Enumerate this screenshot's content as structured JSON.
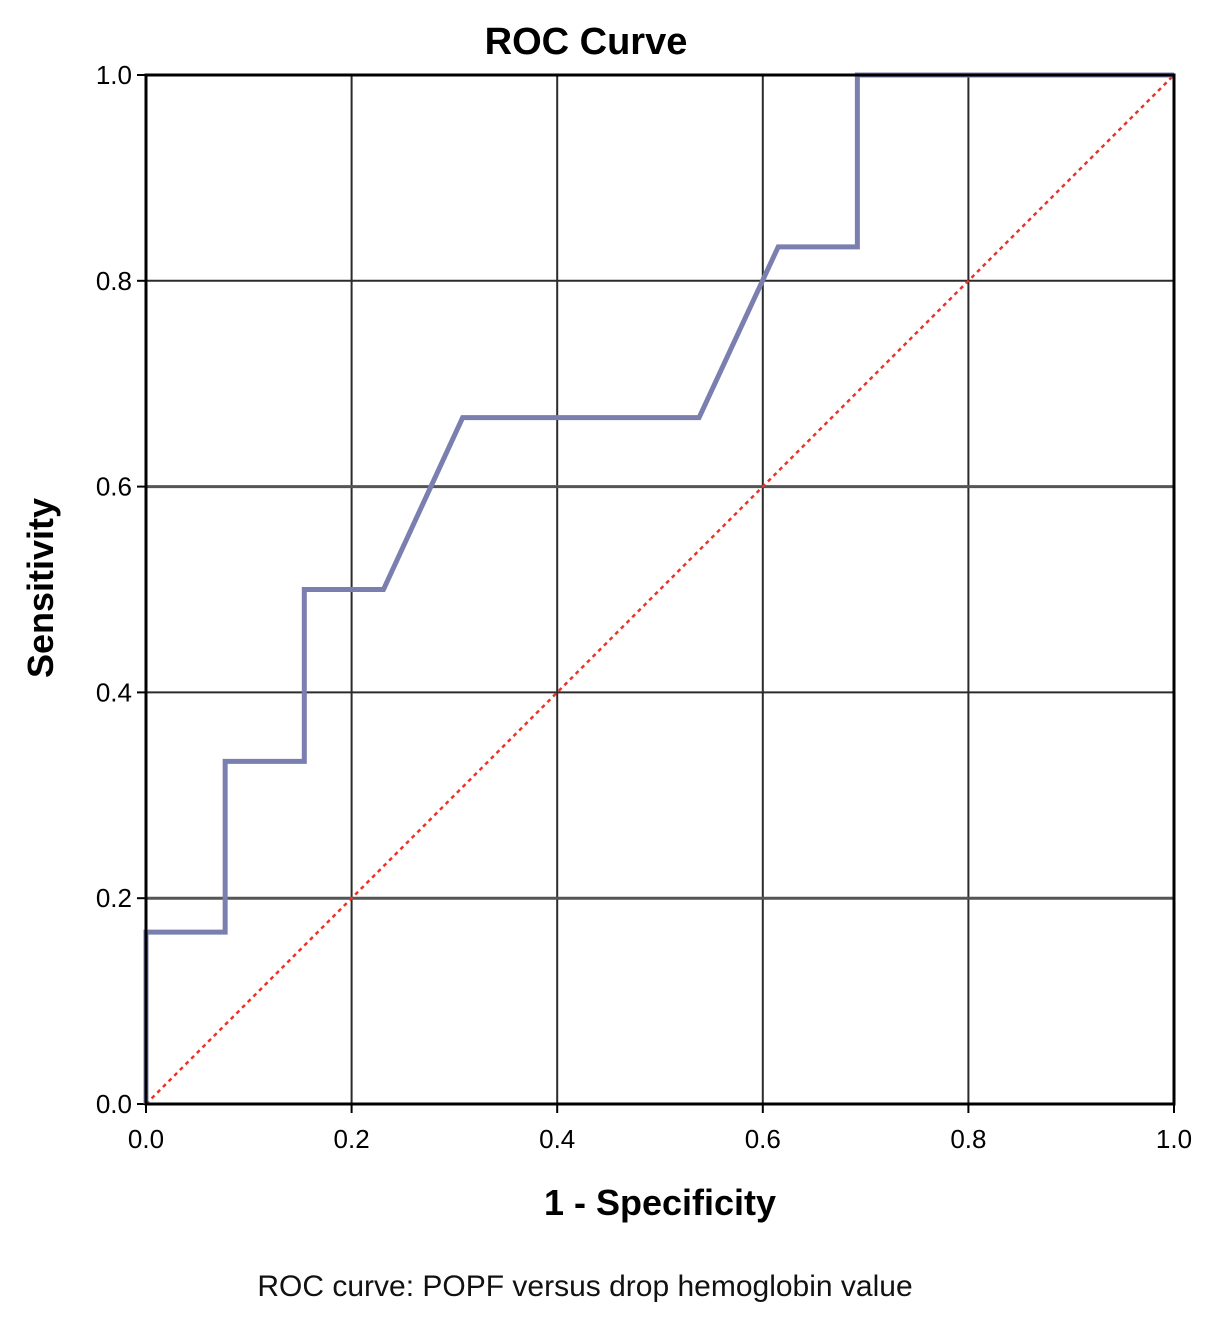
{
  "chart_data": {
    "type": "line",
    "title": "ROC Curve",
    "xlabel": "1 - Specificity",
    "ylabel": "Sensitivity",
    "xlim": [
      0,
      1
    ],
    "ylim": [
      0,
      1
    ],
    "xticks": [
      "0.0",
      "0.2",
      "0.4",
      "0.6",
      "0.8",
      "1.0"
    ],
    "yticks": [
      "0.0",
      "0.2",
      "0.4",
      "0.6",
      "0.8",
      "1.0"
    ],
    "grid": true,
    "series": [
      {
        "style": "step",
        "color": "#7a7fb0",
        "x": [
          0.0,
          0.0,
          0.077,
          0.077,
          0.154,
          0.154,
          0.231,
          0.308,
          0.538,
          0.615,
          0.692,
          0.692,
          1.0
        ],
        "y": [
          0.0,
          0.167,
          0.167,
          0.333,
          0.333,
          0.5,
          0.5,
          0.667,
          0.667,
          0.833,
          0.833,
          1.0,
          1.0
        ]
      },
      {
        "style": "dashed",
        "color": "#e8342b",
        "x": [
          0.0,
          1.0
        ],
        "y": [
          0.0,
          1.0
        ]
      }
    ]
  },
  "caption": "ROC curve: POPF versus drop hemoglobin value"
}
